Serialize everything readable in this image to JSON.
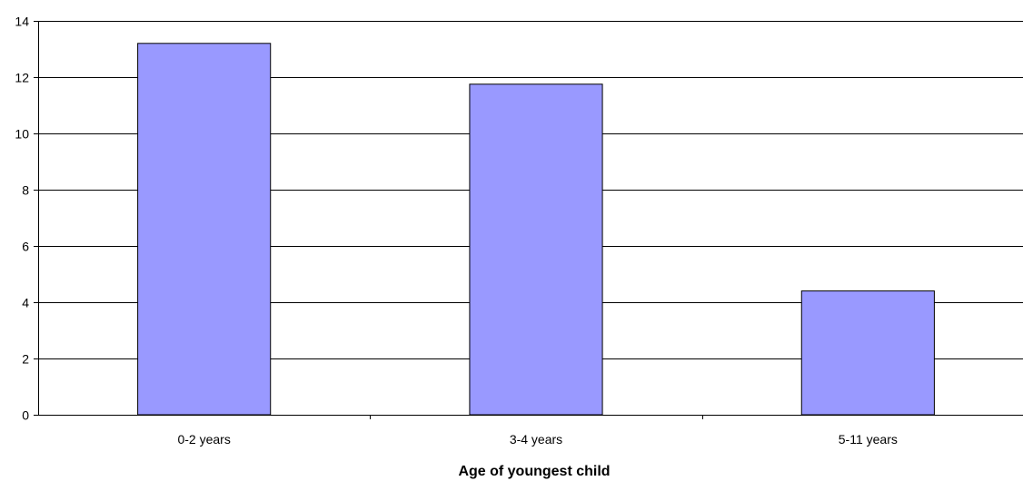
{
  "chart_data": {
    "type": "bar",
    "title": "",
    "xlabel": "Age of youngest child",
    "ylabel": "",
    "categories": [
      "0-2 years",
      "3-4 years",
      "5-11 years"
    ],
    "values": [
      13.2,
      11.75,
      4.4
    ],
    "ylim": [
      0,
      14
    ],
    "yticks": [
      0,
      2,
      4,
      6,
      8,
      10,
      12,
      14
    ],
    "ytick_labels": [
      "0",
      "2",
      "4",
      "6",
      "8",
      "10",
      "12",
      "14"
    ],
    "grid": true,
    "legend": "none",
    "colors": {
      "bar_fill": "#9999ff",
      "bar_stroke": "#000000",
      "grid": "#000000"
    }
  }
}
